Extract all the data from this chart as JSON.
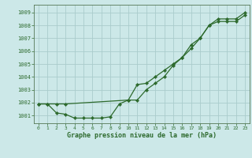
{
  "bg_color": "#cce8e8",
  "grid_color": "#aacccc",
  "line_color": "#2d6a2d",
  "marker_color": "#2d6a2d",
  "xlabel": "Graphe pression niveau de la mer (hPa)",
  "xlim": [
    -0.5,
    23.5
  ],
  "ylim": [
    1000.4,
    1009.6
  ],
  "yticks": [
    1001,
    1002,
    1003,
    1004,
    1005,
    1006,
    1007,
    1008,
    1009
  ],
  "xticks": [
    0,
    1,
    2,
    3,
    4,
    5,
    6,
    7,
    8,
    9,
    10,
    11,
    12,
    13,
    14,
    15,
    16,
    17,
    18,
    19,
    20,
    21,
    22,
    23
  ],
  "series1_x": [
    0,
    1,
    2,
    3,
    4,
    5,
    6,
    7,
    8,
    9,
    10,
    11,
    12,
    13,
    14,
    15,
    16,
    17,
    18,
    19,
    20,
    21,
    22,
    23
  ],
  "series1_y": [
    1001.9,
    1001.9,
    1001.2,
    1001.1,
    1000.8,
    1000.8,
    1000.8,
    1000.8,
    1000.9,
    1001.9,
    1002.2,
    1003.4,
    1003.5,
    1004.0,
    1004.5,
    1005.0,
    1005.5,
    1006.2,
    1007.0,
    1008.0,
    1008.3,
    1008.3,
    1008.3,
    1008.8
  ],
  "series2_x": [
    0,
    1,
    2,
    3,
    10,
    11,
    12,
    13,
    14,
    15,
    16,
    17,
    18,
    19,
    20,
    21,
    22,
    23
  ],
  "series2_y": [
    1001.9,
    1001.9,
    1001.9,
    1001.9,
    1002.2,
    1002.2,
    1003.0,
    1003.5,
    1004.0,
    1004.9,
    1005.5,
    1006.5,
    1007.0,
    1008.0,
    1008.5,
    1008.5,
    1008.5,
    1009.0
  ]
}
